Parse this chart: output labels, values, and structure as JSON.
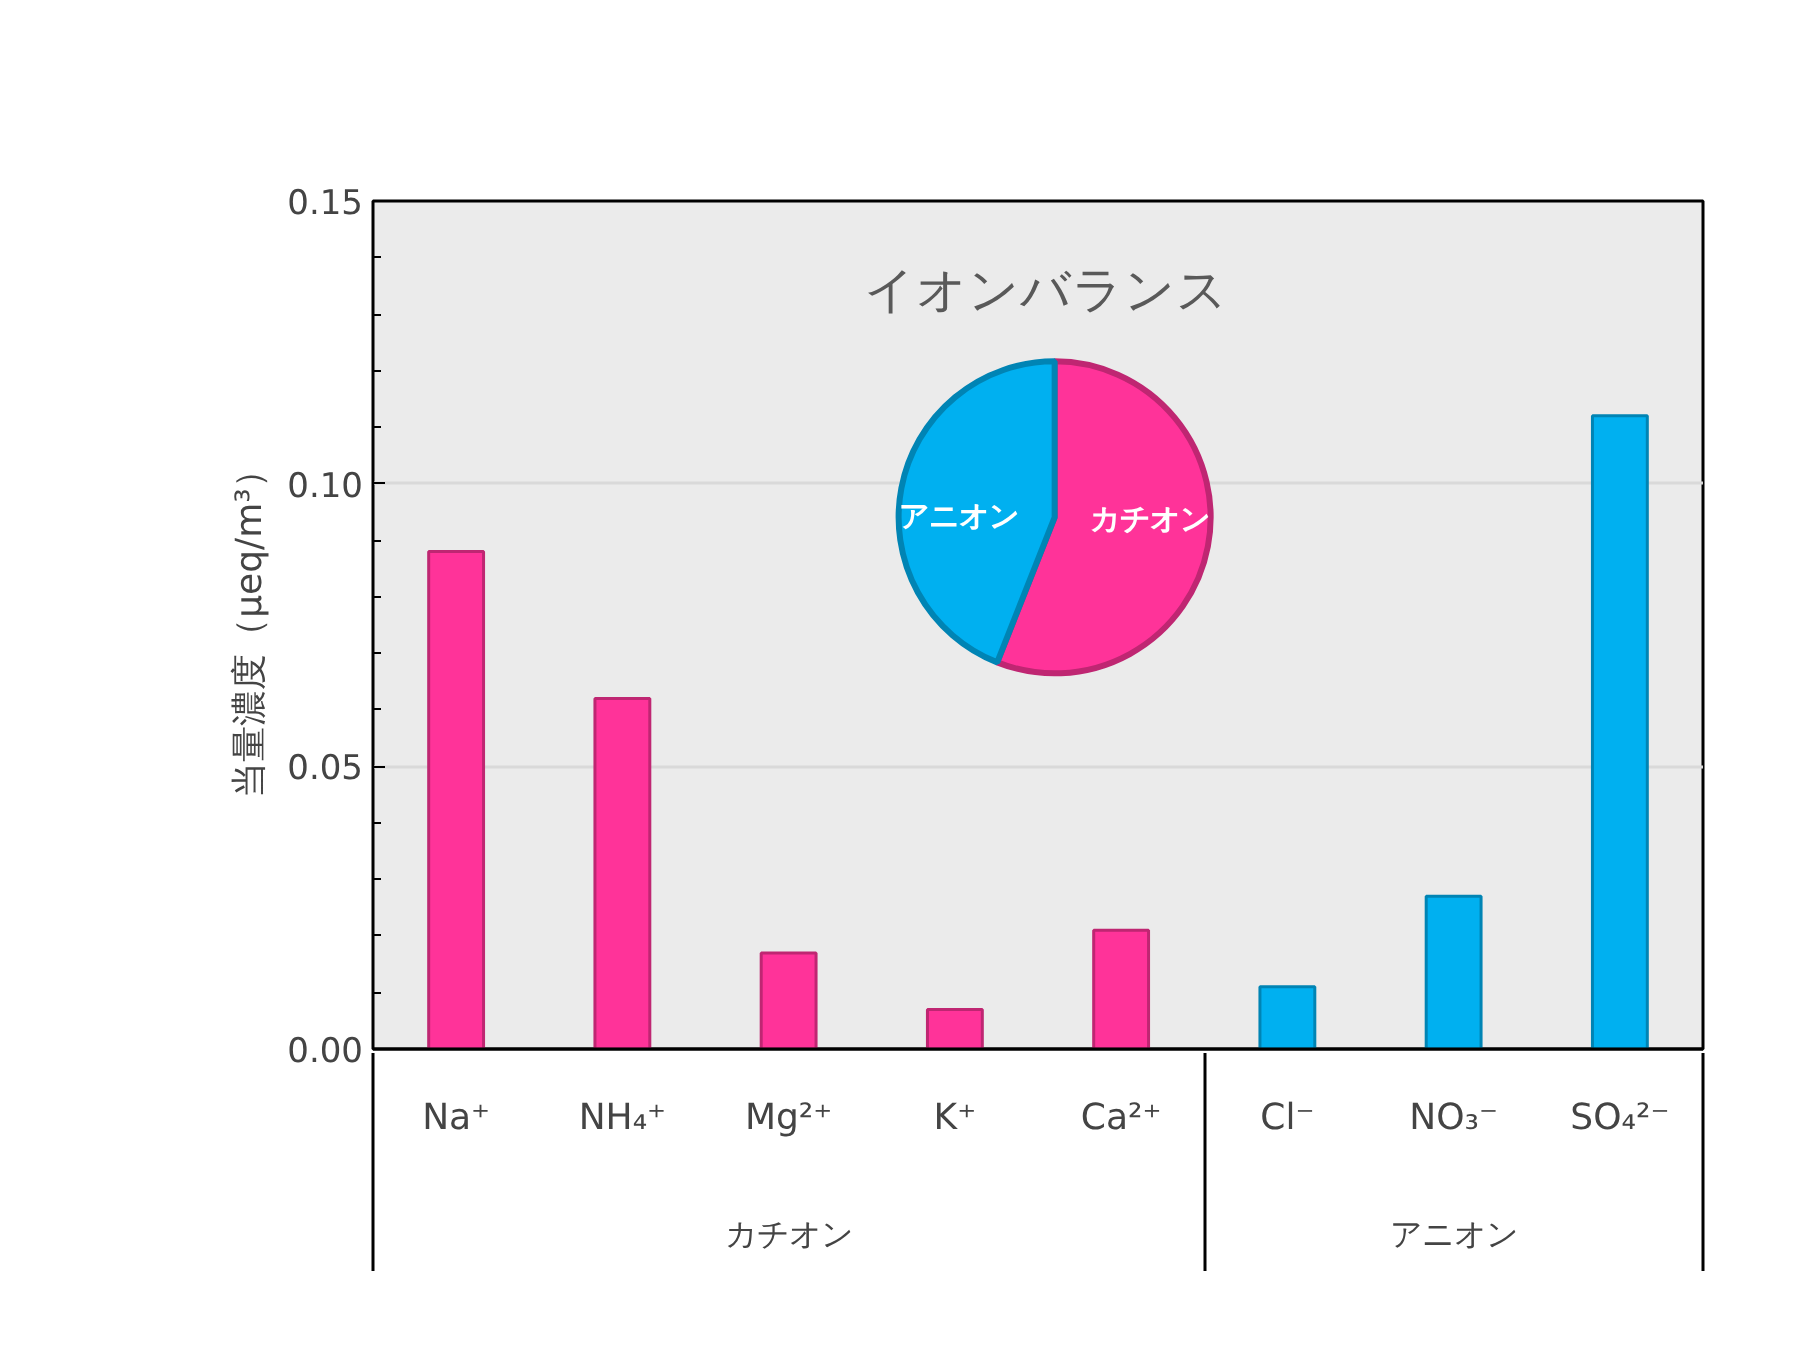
{
  "chart_data": [
    {
      "type": "bar",
      "ylabel": "当量濃度（μeq/m³）",
      "categories": [
        "Na⁺",
        "NH₄⁺",
        "Mg²⁺",
        "K⁺",
        "Ca²⁺",
        "Cl⁻",
        "NO₃⁻",
        "SO₄²⁻"
      ],
      "series": [
        {
          "color": "#ff3399",
          "values": [
            0.088,
            0.062,
            0.017,
            0.007,
            0.021,
            null,
            null,
            null
          ]
        },
        {
          "color": "#00b0f0",
          "values": [
            null,
            null,
            null,
            null,
            null,
            0.011,
            0.027,
            0.112
          ]
        }
      ],
      "ylim": [
        0,
        0.15
      ],
      "yticks": [
        {
          "value": 0,
          "label": "0.00"
        },
        {
          "value": 0.01,
          "label": null
        },
        {
          "value": 0.02,
          "label": null
        },
        {
          "value": 0.03,
          "label": null
        },
        {
          "value": 0.04,
          "label": null
        },
        {
          "value": 0.05,
          "label": "0.05"
        },
        {
          "value": 0.06,
          "label": null
        },
        {
          "value": 0.07,
          "label": null
        },
        {
          "value": 0.08,
          "label": null
        },
        {
          "value": 0.09,
          "label": null
        },
        {
          "value": 0.1,
          "label": "0.10"
        },
        {
          "value": 0.11,
          "label": null
        },
        {
          "value": 0.12,
          "label": null
        },
        {
          "value": 0.13,
          "label": null
        },
        {
          "value": 0.14,
          "label": null
        },
        {
          "value": 0.15,
          "label": "0.15"
        }
      ],
      "annotations": [
        "カチオン",
        "アニオン"
      ],
      "grid": "y"
    },
    {
      "type": "pie",
      "title": "イオンバランス",
      "categories": [
        "カチオン",
        "アニオン"
      ],
      "values": [
        56,
        44
      ],
      "colors": [
        "#ff3399",
        "#00b0f0"
      ]
    }
  ]
}
